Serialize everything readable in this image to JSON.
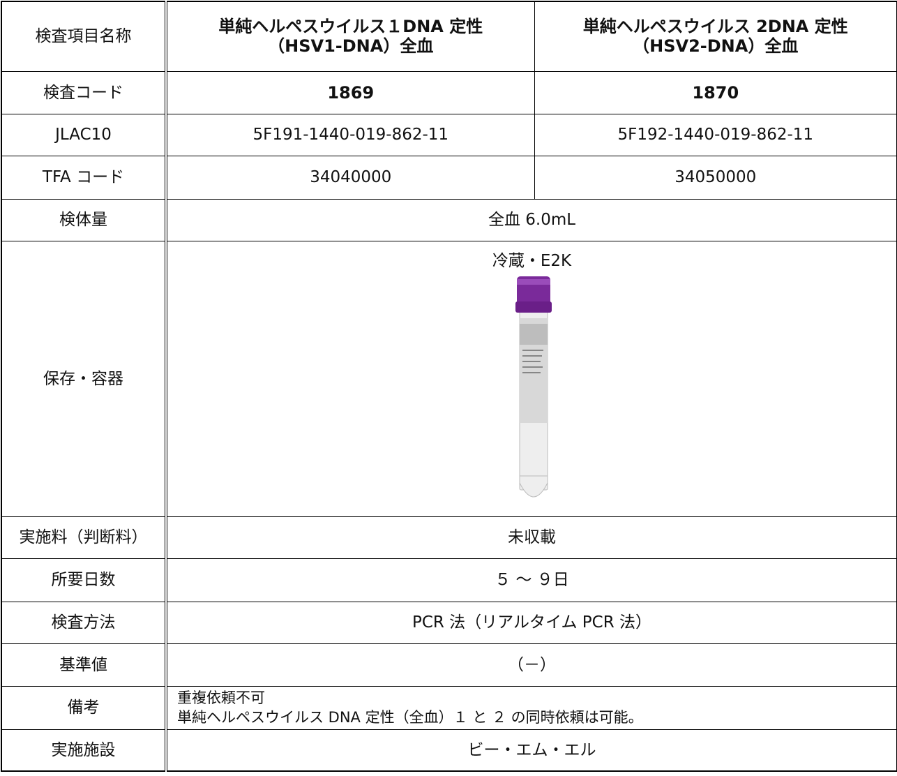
{
  "table": {
    "rows": [
      {
        "label": "検査項目名称",
        "cells": [
          [
            "単純ヘルペスウイルス１DNA 定性",
            "（HSV1-DNA）全血"
          ],
          [
            "単純ヘルペスウイルス 2DNA 定性",
            "（HSV2-DNA）全血"
          ]
        ]
      },
      {
        "label": "検査コード",
        "cells": [
          [
            "1869"
          ],
          [
            "1870"
          ]
        ]
      },
      {
        "label": "JLAC10",
        "cells": [
          [
            "5F191-1440-019-862-11"
          ],
          [
            "5F192-1440-019-862-11"
          ]
        ]
      },
      {
        "label": "TFA コード",
        "cells": [
          [
            "34040000"
          ],
          [
            "34050000"
          ]
        ]
      },
      {
        "label": "検体量",
        "cells": [
          [
            "全血 6.0mL"
          ]
        ]
      },
      {
        "label": "保存・容器",
        "cells": [
          [
            "冷蔵・E2K"
          ]
        ]
      },
      {
        "label": "実施料（判断料）",
        "cells": [
          [
            "未収載"
          ]
        ]
      },
      {
        "label": "所要日数",
        "cells": [
          [
            "５ ～ ９日"
          ]
        ]
      },
      {
        "label": "検査方法",
        "cells": [
          [
            "PCR 法（リアルタイム PCR 法）"
          ]
        ]
      },
      {
        "label": "基準値",
        "cells": [
          [
            "（－）"
          ]
        ]
      },
      {
        "label": "備考",
        "cells": [
          [
            "重複依頼不可",
            "単純ヘルペスウイルス DNA 定性（全血）１ と ２ の同時依頼は可能。"
          ]
        ]
      },
      {
        "label": "実施施設",
        "cells": [
          [
            "ビー・エム・エル"
          ]
        ]
      }
    ]
  }
}
